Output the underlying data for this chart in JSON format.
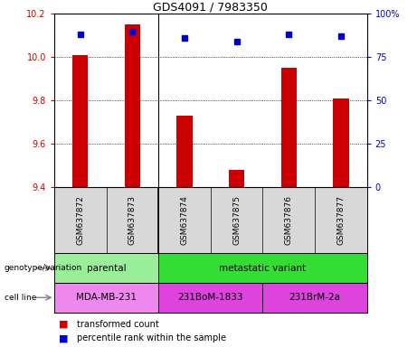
{
  "title": "GDS4091 / 7983350",
  "samples": [
    "GSM637872",
    "GSM637873",
    "GSM637874",
    "GSM637875",
    "GSM637876",
    "GSM637877"
  ],
  "transformed_counts": [
    10.01,
    10.15,
    9.73,
    9.48,
    9.95,
    9.81
  ],
  "percentile_ranks": [
    88,
    90,
    86,
    84,
    88,
    87
  ],
  "ylim_left": [
    9.4,
    10.2
  ],
  "ylim_right": [
    0,
    100
  ],
  "yticks_left": [
    9.4,
    9.6,
    9.8,
    10.0,
    10.2
  ],
  "yticks_right": [
    0,
    25,
    50,
    75,
    100
  ],
  "bar_color": "#cc0000",
  "dot_color": "#0000cc",
  "sample_bg": "#d8d8d8",
  "genotype_groups": [
    {
      "label": "parental",
      "span": [
        0,
        2
      ],
      "color": "#99ee99"
    },
    {
      "label": "metastatic variant",
      "span": [
        2,
        6
      ],
      "color": "#33dd33"
    }
  ],
  "cell_line_groups": [
    {
      "label": "MDA-MB-231",
      "span": [
        0,
        2
      ],
      "color": "#ee88ee"
    },
    {
      "label": "231BoM-1833",
      "span": [
        2,
        4
      ],
      "color": "#dd44dd"
    },
    {
      "label": "231BrM-2a",
      "span": [
        4,
        6
      ],
      "color": "#dd44dd"
    }
  ],
  "legend_items": [
    {
      "label": "transformed count",
      "color": "#cc0000"
    },
    {
      "label": "percentile rank within the sample",
      "color": "#0000cc"
    }
  ],
  "left_labels": [
    {
      "text": "genotype/variation",
      "row": "geno"
    },
    {
      "text": "cell line",
      "row": "cell"
    }
  ]
}
